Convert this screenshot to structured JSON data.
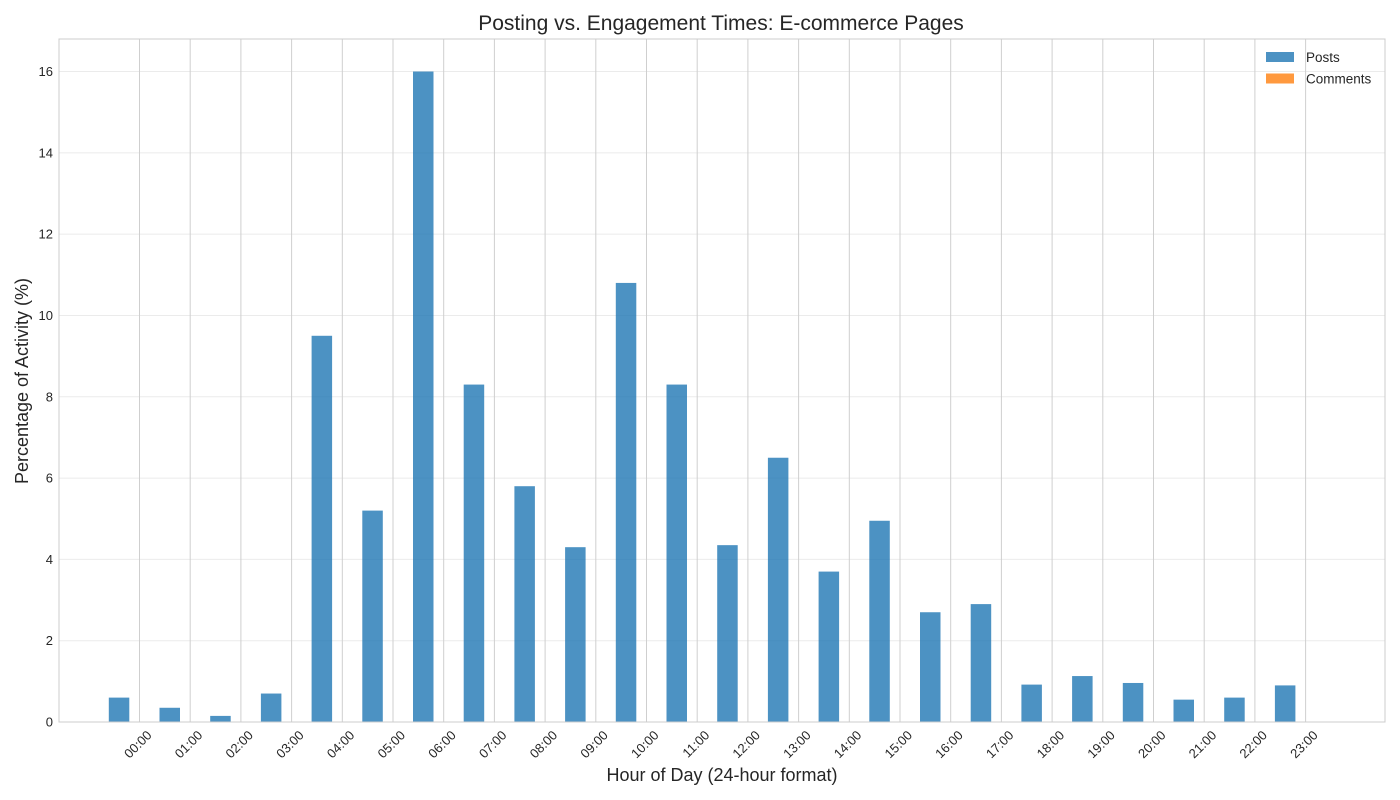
{
  "chart_data": {
    "type": "bar",
    "title": "Posting vs. Engagement Times: E-commerce Pages",
    "xlabel": "Hour of Day (24-hour format)",
    "ylabel": "Percentage of Activity (%)",
    "categories": [
      "00:00",
      "01:00",
      "02:00",
      "03:00",
      "04:00",
      "05:00",
      "06:00",
      "07:00",
      "08:00",
      "09:00",
      "10:00",
      "11:00",
      "12:00",
      "13:00",
      "14:00",
      "15:00",
      "16:00",
      "17:00",
      "18:00",
      "19:00",
      "20:00",
      "21:00",
      "22:00",
      "23:00"
    ],
    "series": [
      {
        "name": "Posts",
        "color": "#1f77b4",
        "values": [
          0.6,
          0.35,
          0.15,
          0.7,
          9.5,
          5.2,
          16.0,
          8.3,
          5.8,
          4.3,
          10.8,
          8.3,
          4.35,
          6.5,
          3.7,
          4.95,
          2.7,
          2.9,
          0.92,
          1.13,
          0.96,
          0.55,
          0.6,
          0.9
        ]
      },
      {
        "name": "Comments",
        "color": "#ff7f0e",
        "values": [
          0,
          0,
          0,
          0,
          0,
          0,
          0,
          0,
          0,
          0,
          0,
          0,
          0,
          0,
          0,
          0,
          0,
          0,
          0,
          0,
          0,
          0,
          0,
          0
        ]
      }
    ],
    "ylim": [
      0,
      16.8
    ],
    "yticks": [
      0,
      2,
      4,
      6,
      8,
      10,
      12,
      14,
      16
    ],
    "grid": true,
    "legend_position": "top-right"
  }
}
